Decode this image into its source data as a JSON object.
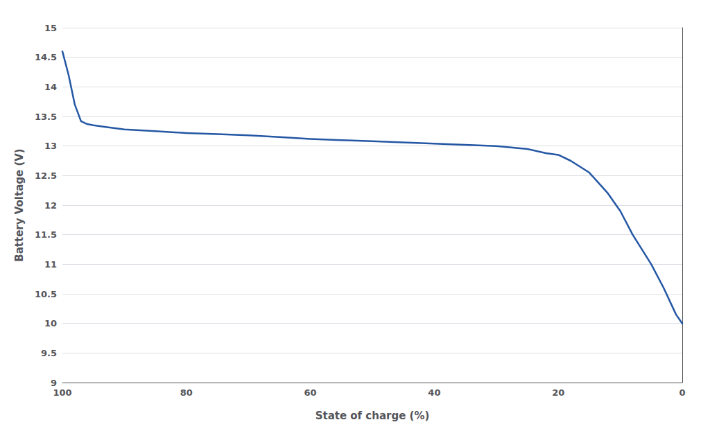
{
  "chart_data": {
    "type": "line",
    "xlabel": "State of charge (%)",
    "ylabel": "Battery Voltage (V)",
    "x": [
      100,
      99,
      98,
      97,
      96,
      95,
      93,
      90,
      85,
      80,
      75,
      70,
      65,
      60,
      55,
      50,
      45,
      40,
      35,
      30,
      25,
      22,
      20,
      18,
      15,
      12,
      10,
      8,
      5,
      3,
      1,
      0
    ],
    "values": [
      14.6,
      14.2,
      13.7,
      13.42,
      13.37,
      13.35,
      13.32,
      13.28,
      13.25,
      13.22,
      13.2,
      13.18,
      13.15,
      13.12,
      13.1,
      13.08,
      13.06,
      13.04,
      13.02,
      13.0,
      12.95,
      12.88,
      12.85,
      12.75,
      12.55,
      12.2,
      11.9,
      11.5,
      11.0,
      10.6,
      10.15,
      10.0
    ],
    "color": "#2457A4",
    "xlim": [
      100,
      0
    ],
    "ylim": [
      9,
      15
    ],
    "xticks": [
      100,
      80,
      60,
      40,
      20,
      0
    ],
    "yticks": [
      9,
      9.5,
      10,
      10.5,
      11,
      11.5,
      12,
      12.5,
      13,
      13.5,
      14,
      14.5,
      15
    ],
    "grid": true
  }
}
